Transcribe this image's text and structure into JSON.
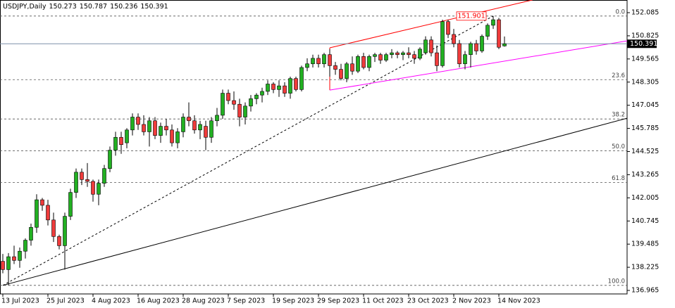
{
  "chart_data": {
    "type": "candlestick",
    "title": "USDJPY,Daily",
    "categories": [
      "13 Jul 2023",
      null,
      null,
      null,
      null,
      null,
      null,
      null,
      "25 Jul 2023",
      null,
      null,
      null,
      null,
      null,
      null,
      null,
      "4 Aug 2023",
      null,
      null,
      null,
      null,
      null,
      null,
      null,
      "16 Aug 2023",
      null,
      null,
      null,
      null,
      null,
      null,
      null,
      "28 Aug 2023",
      null,
      null,
      null,
      null,
      null,
      null,
      null,
      "7 Sep 2023",
      null,
      null,
      null,
      null,
      null,
      null,
      null,
      "19 Sep 2023",
      null,
      null,
      null,
      null,
      null,
      null,
      null,
      "29 Sep 2023",
      null,
      null,
      null,
      null,
      null,
      null,
      null,
      "11 Oct 2023",
      null,
      null,
      null,
      null,
      null,
      null,
      null,
      "23 Oct 2023",
      null,
      null,
      null,
      null,
      null,
      null,
      null,
      "2 Nov 2023",
      null,
      null,
      null,
      null,
      null,
      null,
      null,
      "14 Nov 2023",
      null
    ],
    "open": [
      138.55,
      138.1,
      138.8,
      138.6,
      139.1,
      139.7,
      140.4,
      141.9,
      141.6,
      140.8,
      139.9,
      139.4,
      141.0,
      142.3,
      143.4,
      143.0,
      142.9,
      142.2,
      142.8,
      143.6,
      144.6,
      145.3,
      145.0,
      145.7,
      146.4,
      146.0,
      145.6,
      146.2,
      145.4,
      145.9,
      145.7,
      145.0,
      145.6,
      146.4,
      146.2,
      145.7,
      145.9,
      145.3,
      146.2,
      146.5,
      147.7,
      147.3,
      147.1,
      146.4,
      147.0,
      147.4,
      147.6,
      147.8,
      148.2,
      147.9,
      148.1,
      147.7,
      148.5,
      147.9,
      149.1,
      149.3,
      149.6,
      149.3,
      149.8,
      149.2,
      149.0,
      148.5,
      149.3,
      148.9,
      149.7,
      149.1,
      149.7,
      149.8,
      149.5,
      149.8,
      149.9,
      149.8,
      149.9,
      149.8,
      149.6,
      149.9,
      150.6,
      149.9,
      149.2,
      151.6,
      150.9,
      150.4,
      149.3,
      149.8,
      150.4,
      150.0,
      150.8,
      151.4,
      151.7,
      150.273
    ],
    "high": [
      138.95,
      139.0,
      139.4,
      139.3,
      139.8,
      140.6,
      142.2,
      142.0,
      141.9,
      141.2,
      140.0,
      141.2,
      142.5,
      143.6,
      143.6,
      143.9,
      143.0,
      143.0,
      143.8,
      144.8,
      145.6,
      145.6,
      145.8,
      146.6,
      146.6,
      146.5,
      146.4,
      146.4,
      146.1,
      146.3,
      146.0,
      145.8,
      146.6,
      147.2,
      146.5,
      146.2,
      146.2,
      146.4,
      146.9,
      147.9,
      147.9,
      147.8,
      147.4,
      147.2,
      147.6,
      147.7,
      148.0,
      148.4,
      148.3,
      148.4,
      148.3,
      148.6,
      148.6,
      149.2,
      149.6,
      149.8,
      149.8,
      149.9,
      150.1,
      149.4,
      149.3,
      149.4,
      149.7,
      149.8,
      149.9,
      149.8,
      149.9,
      149.9,
      149.9,
      150.1,
      150.0,
      150.0,
      150.2,
      150.0,
      150.2,
      150.8,
      150.8,
      150.3,
      151.7,
      151.7,
      151.2,
      150.6,
      150.0,
      150.5,
      150.6,
      150.9,
      151.5,
      151.901,
      151.8,
      150.787
    ],
    "low": [
      137.9,
      137.24,
      138.4,
      138.2,
      138.7,
      139.4,
      140.1,
      141.3,
      140.5,
      139.6,
      139.2,
      138.1,
      140.8,
      142.0,
      142.7,
      142.6,
      141.8,
      141.6,
      142.6,
      143.4,
      144.3,
      144.4,
      144.7,
      145.4,
      145.7,
      145.4,
      144.8,
      145.2,
      145.0,
      145.4,
      144.8,
      144.7,
      145.3,
      145.9,
      145.5,
      145.2,
      144.6,
      145.0,
      145.9,
      146.3,
      147.1,
      146.8,
      145.9,
      146.0,
      146.7,
      147.1,
      147.2,
      147.6,
      147.7,
      147.5,
      147.5,
      147.4,
      147.8,
      147.8,
      148.9,
      149.1,
      149.1,
      149.1,
      148.6,
      148.7,
      148.4,
      148.3,
      148.7,
      148.8,
      149.0,
      148.9,
      149.4,
      149.3,
      149.4,
      149.6,
      149.6,
      149.5,
      149.6,
      149.3,
      149.5,
      149.8,
      149.7,
      148.9,
      149.1,
      150.7,
      150.2,
      149.1,
      149.0,
      149.1,
      149.8,
      149.9,
      150.6,
      151.2,
      150.1,
      150.236
    ],
    "close": [
      138.1,
      138.8,
      138.6,
      139.1,
      139.7,
      140.4,
      141.9,
      141.6,
      140.8,
      139.9,
      139.4,
      141.0,
      142.3,
      143.4,
      143.0,
      142.9,
      142.2,
      142.8,
      143.6,
      144.6,
      145.3,
      144.9,
      145.7,
      146.4,
      146.0,
      145.6,
      146.2,
      145.4,
      145.9,
      145.7,
      145.0,
      145.6,
      146.4,
      146.2,
      145.7,
      146.0,
      145.3,
      146.2,
      146.5,
      147.7,
      147.3,
      147.1,
      146.4,
      147.0,
      147.4,
      147.6,
      147.8,
      148.2,
      147.9,
      148.1,
      147.7,
      148.5,
      147.9,
      149.1,
      149.3,
      149.6,
      149.3,
      149.8,
      149.2,
      149.0,
      148.5,
      149.3,
      148.9,
      149.7,
      149.1,
      149.7,
      149.8,
      149.5,
      149.8,
      149.9,
      149.8,
      149.9,
      149.8,
      149.6,
      150.1,
      150.6,
      149.9,
      149.2,
      151.6,
      150.9,
      150.4,
      149.3,
      149.8,
      150.4,
      150.0,
      150.8,
      151.4,
      151.7,
      150.2,
      150.391
    ],
    "up_color": "#22b022",
    "down_color": "#ef3b3b",
    "current_price_color": "#7d8fa8",
    "ylim": [
      136.774,
      152.774
    ],
    "yticks": [
      136.965,
      138.225,
      139.485,
      140.745,
      142.005,
      143.265,
      144.525,
      145.785,
      147.045,
      148.305,
      149.565,
      150.825,
      152.085
    ],
    "fibonacci": {
      "labels": [
        "0.0",
        "23.6",
        "38.2",
        "50.0",
        "61.8",
        "100.0"
      ],
      "prices": [
        151.901,
        148.439,
        146.297,
        144.571,
        142.84,
        137.24
      ]
    },
    "lines": [
      {
        "x": [
          0,
          87
        ],
        "y": [
          137.24,
          151.901
        ],
        "color": "#000000",
        "style": "dotted"
      },
      {
        "x": [
          0,
          110.75
        ],
        "y": [
          137.24,
          146.34
        ],
        "color": "#000000",
        "style": "solid"
      },
      {
        "x": [
          58,
          94
        ],
        "y": [
          150.17,
          152.78
        ],
        "color": "#ff0000",
        "style": "solid"
      },
      {
        "x": [
          58,
          58
        ],
        "y": [
          150.17,
          147.87
        ],
        "color": "#ff0000",
        "style": "solid"
      },
      {
        "x": [
          58,
          110.75
        ],
        "y": [
          147.87,
          150.55
        ],
        "color": "#ff00ff",
        "style": "solid"
      }
    ],
    "high_marker": 151.901
  }
}
